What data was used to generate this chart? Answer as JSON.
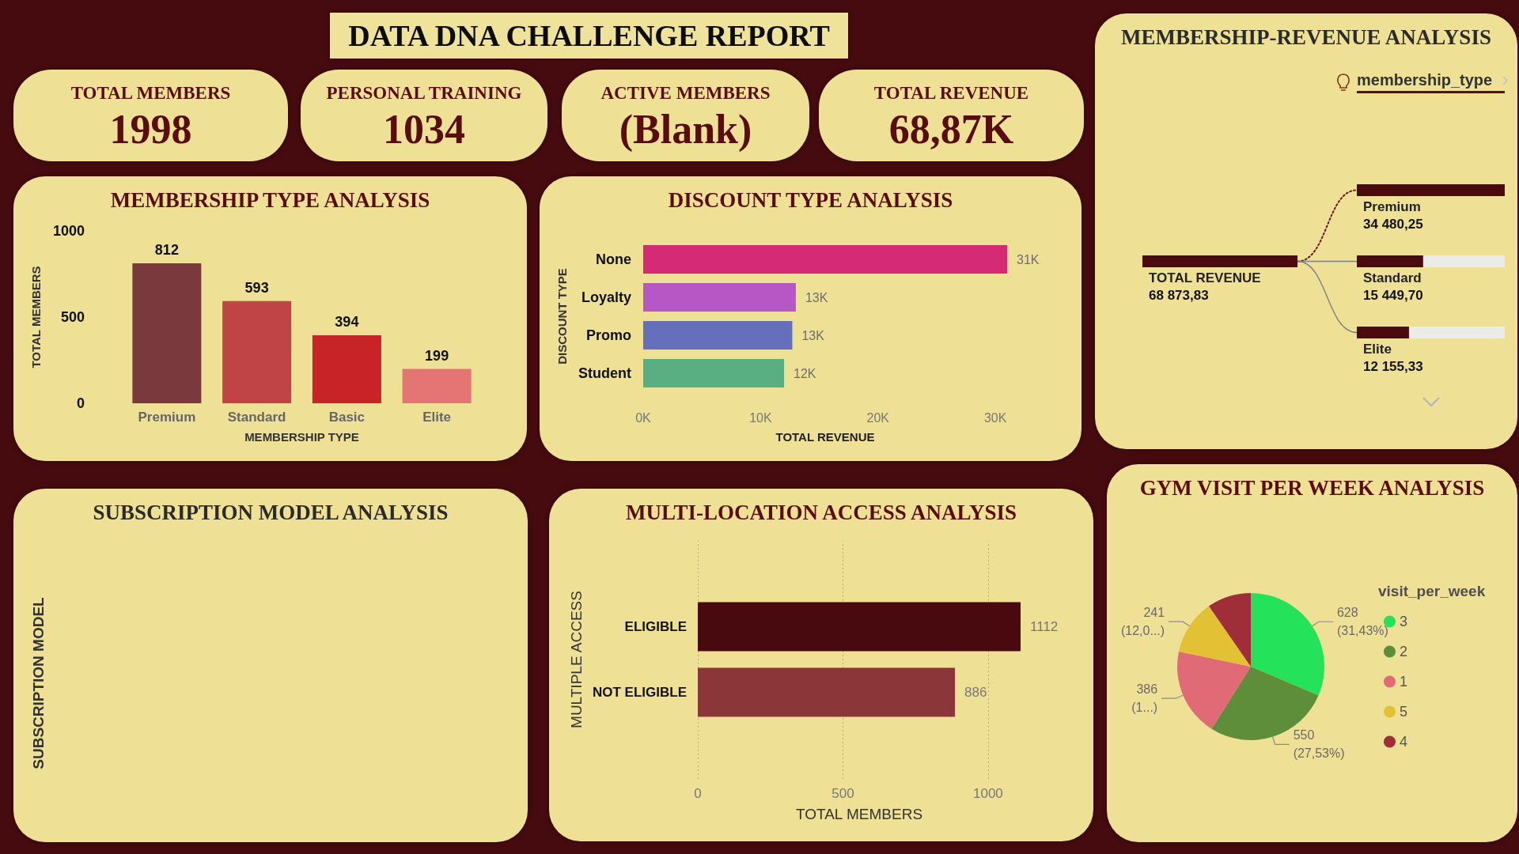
{
  "chart_data": [
    {
      "type": "other",
      "title": "DATA DNA CHALLENGE REPORT"
    },
    {
      "type": "other",
      "title": "TOTAL MEMBERS",
      "annotations": [
        "1998"
      ]
    },
    {
      "type": "other",
      "title": "PERSONAL TRAINING",
      "annotations": [
        "1034"
      ]
    },
    {
      "type": "other",
      "title": "ACTIVE MEMBERS",
      "annotations": [
        "(Blank)"
      ]
    },
    {
      "type": "other",
      "title": "TOTAL REVENUE",
      "annotations": [
        "68,87K"
      ]
    },
    {
      "type": "bar",
      "title": "MEMBERSHIP TYPE ANALYSIS",
      "categories": [
        "Premium",
        "Standard",
        "Basic",
        "Elite"
      ],
      "values": [
        812,
        593,
        394,
        199
      ],
      "colors": [
        "#7a3a3d",
        "#c04446",
        "#c82327",
        "#e57474"
      ],
      "xlabel": "MEMBERSHIP TYPE",
      "ylabel": "TOTAL MEMBERS",
      "ylim": [
        0,
        1000
      ],
      "yticks": [
        0,
        500,
        1000
      ],
      "data_labels": true
    },
    {
      "type": "bar",
      "orientation": "horizontal",
      "title": "DISCOUNT TYPE ANALYSIS",
      "categories": [
        "None",
        "Loyalty",
        "Promo",
        "Student"
      ],
      "values": [
        31000,
        13000,
        12700,
        12000
      ],
      "colors": [
        "#d52a74",
        "#b657c6",
        "#666fbb",
        "#5aae84"
      ],
      "value_labels": [
        "31K",
        "13K",
        "13K",
        "12K"
      ],
      "xlabel": "TOTAL REVENUE",
      "ylabel": "DISCOUNT TYPE",
      "xlim": [
        0,
        31000
      ],
      "xticks": [
        {
          "value": 0,
          "label": "0K"
        },
        {
          "value": 10000,
          "label": "10K"
        },
        {
          "value": 20000,
          "label": "20K"
        },
        {
          "value": 30000,
          "label": "30K"
        }
      ]
    },
    {
      "type": "other",
      "title": "MEMBERSHIP-REVENUE ANALYSIS",
      "annotations": [
        "membership_type"
      ],
      "categories": [
        "TOTAL REVENUE",
        "Premium",
        "Standard",
        "Elite"
      ],
      "values": [
        68873.83,
        34480.25,
        15449.7,
        12155.33
      ],
      "value_labels": [
        "68 873,83",
        "34 480,25",
        "15 449,70",
        "12 155,33"
      ]
    },
    {
      "type": "other",
      "title": "SUBSCRIPTION MODEL ANALYSIS",
      "ylabel": "SUBSCRIPTION MODEL"
    },
    {
      "type": "bar",
      "orientation": "horizontal",
      "title": "MULTI-LOCATION ACCESS ANALYSIS",
      "categories": [
        "ELIGIBLE",
        "NOT ELIGIBLE"
      ],
      "values": [
        1112,
        886
      ],
      "colors": [
        "#480a0e",
        "#8b3739"
      ],
      "data_labels": true,
      "xlabel": "TOTAL MEMBERS",
      "ylabel": "MULTIPLE ACCESS",
      "xlim": [
        0,
        1112
      ],
      "xticks": [
        0,
        500,
        1000
      ],
      "grid": "x"
    },
    {
      "type": "pie",
      "title": "GYM VISIT PER WEEK ANALYSIS",
      "categories": [
        "3",
        "2",
        "1",
        "5",
        "4"
      ],
      "values": [
        628,
        550,
        386,
        241,
        193
      ],
      "colors": [
        "#24e35a",
        "#5e8e3a",
        "#e06a76",
        "#e2c135",
        "#a02d3a"
      ],
      "value_labels": [
        "628\n(31,43%)",
        "550\n(27,53%)",
        "386\n(1...)",
        "241\n(12,0...)",
        null
      ],
      "legend_title": "visit_per_week",
      "legend": "right"
    }
  ]
}
